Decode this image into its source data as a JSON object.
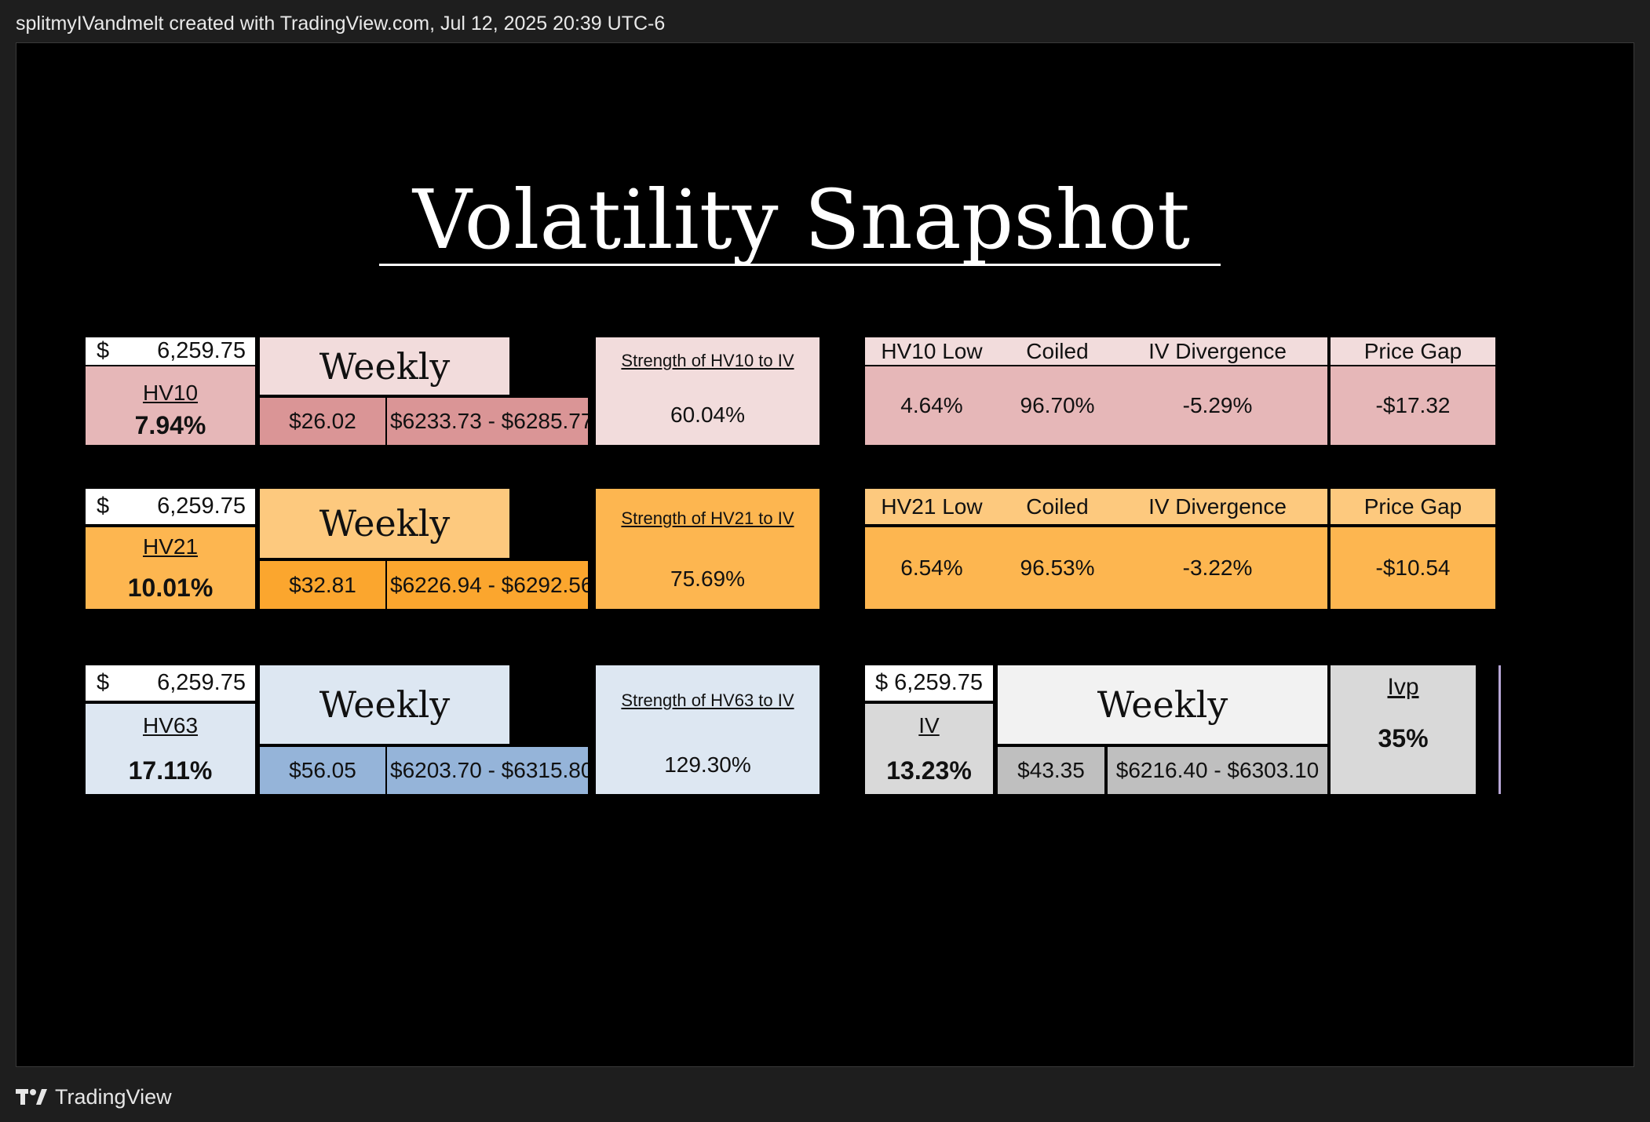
{
  "header": {
    "attribution": "splitmyIVandmelt created with TradingView.com, Jul 12, 2025 20:39 UTC-6"
  },
  "footer": {
    "brand": "TradingView",
    "logo_icon": "tradingview-logo-icon"
  },
  "snapshot": {
    "title": "Volatility Snapshot",
    "rows": [
      {
        "price_symbol": "$",
        "price": "6,259.75",
        "hv_label": "HV10",
        "hv_value": "7.94%",
        "period": "Weekly",
        "move": "$26.02",
        "range": "$6233.73 - $6285.77",
        "strength_label": "Strength of HV10 to IV",
        "strength_value": "60.04%",
        "low_label": "HV10 Low",
        "low_value": "4.64%",
        "coiled_label": "Coiled",
        "coiled_value": "96.70%",
        "divergence_label": "IV Divergence",
        "divergence_value": "-5.29%",
        "gap_label": "Price Gap",
        "gap_value": "-$17.32",
        "colors": {
          "light": "#f2dcdc",
          "mid": "#e6b7b8",
          "dark": "#da9596"
        }
      },
      {
        "price_symbol": "$",
        "price": "6,259.75",
        "hv_label": "HV21",
        "hv_value": "10.01%",
        "period": "Weekly",
        "move": "$32.81",
        "range": "$6226.94 - $6292.56",
        "strength_label": "Strength of HV21 to IV",
        "strength_value": "75.69%",
        "low_label": "HV21 Low",
        "low_value": "6.54%",
        "coiled_label": "Coiled",
        "coiled_value": "96.53%",
        "divergence_label": "IV Divergence",
        "divergence_value": "-3.22%",
        "gap_label": "Price Gap",
        "gap_value": "-$10.54",
        "colors": {
          "light": "#fdc97e",
          "mid": "#fdb650",
          "dark": "#fba62e"
        }
      },
      {
        "price_symbol": "$",
        "price": "6,259.75",
        "hv_label": "HV63",
        "hv_value": "17.11%",
        "period": "Weekly",
        "move": "$56.05",
        "range": "$6203.70 - $6315.80",
        "strength_label": "Strength of HV63 to IV",
        "strength_value": "129.30%",
        "colors": {
          "light": "#dde7f2",
          "mid": "#dde7f2",
          "dark": "#95b4d9"
        }
      }
    ],
    "iv": {
      "price": "$ 6,259.75",
      "label": "IV",
      "value": "13.23%",
      "period": "Weekly",
      "move": "$43.35",
      "range": "$6216.40 - $6303.10",
      "ivp_label": "Ivp",
      "ivp_value": "35%",
      "colors": {
        "light": "#f2f2f2",
        "mid": "#d9d9d9",
        "dark": "#bfbfbf"
      }
    }
  }
}
